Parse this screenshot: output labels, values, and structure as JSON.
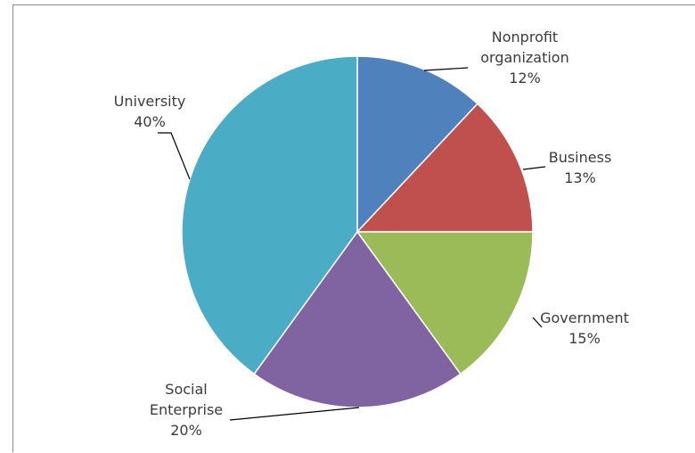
{
  "chart_data": {
    "type": "pie",
    "title": "",
    "slices": [
      {
        "name": "Nonprofit organization",
        "label_lines": [
          "Nonprofit",
          "organization"
        ],
        "value": 12,
        "value_label": "12%",
        "color": "#4f81bd"
      },
      {
        "name": "Business",
        "label_lines": [
          "Business"
        ],
        "value": 13,
        "value_label": "13%",
        "color": "#c0504d"
      },
      {
        "name": "Government",
        "label_lines": [
          "Government"
        ],
        "value": 15,
        "value_label": "15%",
        "color": "#9bbb59"
      },
      {
        "name": "Social Enterprise",
        "label_lines": [
          "Social",
          "Enterprise"
        ],
        "value": 20,
        "value_label": "20%",
        "color": "#8064a2"
      },
      {
        "name": "University",
        "label_lines": [
          "University"
        ],
        "value": 40,
        "value_label": "40%",
        "color": "#4bacc6"
      }
    ],
    "start_angle": "12 o'clock",
    "direction": "clockwise",
    "legend": "none",
    "labels": "outside with leader lines"
  }
}
